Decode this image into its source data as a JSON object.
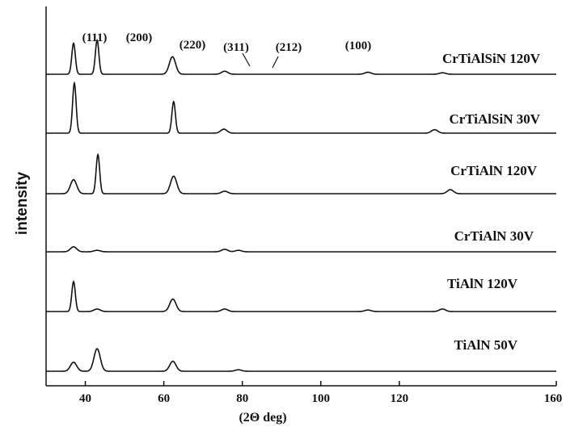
{
  "chart_data": {
    "type": "line",
    "title": "",
    "xlabel": "(2Θ deg)",
    "ylabel": "intensity",
    "xlim": [
      30,
      160
    ],
    "x_ticks": [
      40,
      60,
      80,
      100,
      120,
      160
    ],
    "legend": "none",
    "grid": false,
    "peak_labels": [
      {
        "text": "(111)",
        "x": 37
      },
      {
        "text": "(200)",
        "x": 43
      },
      {
        "text": "(220)",
        "x": 62
      },
      {
        "text": "(311)",
        "x": 75
      },
      {
        "text": "(212)",
        "x": 79
      },
      {
        "text": "(100)",
        "x": 95
      }
    ],
    "series": [
      {
        "name": "CrTiAlSiN  120V",
        "peaks": [
          [
            37,
            0.62
          ],
          [
            43,
            0.68
          ],
          [
            62.2,
            0.35
          ],
          [
            75.5,
            0.06
          ],
          [
            112,
            0.04
          ],
          [
            131,
            0.03
          ]
        ]
      },
      {
        "name": "CrTiAlSiN 30V",
        "peaks": [
          [
            37.2,
            1.0
          ],
          [
            62.5,
            0.63
          ],
          [
            75.3,
            0.08
          ],
          [
            129,
            0.07
          ]
        ]
      },
      {
        "name": "CrTiAlN 120V",
        "peaks": [
          [
            37,
            0.28
          ],
          [
            43.2,
            0.78
          ],
          [
            62.5,
            0.35
          ],
          [
            75.5,
            0.05
          ],
          [
            133,
            0.08
          ]
        ]
      },
      {
        "name": "CrTiAlN 30V",
        "peaks": [
          [
            37,
            0.1
          ],
          [
            43,
            0.03
          ],
          [
            75.5,
            0.05
          ],
          [
            79,
            0.03
          ]
        ]
      },
      {
        "name": "TiAlN 120V",
        "peaks": [
          [
            37,
            0.6
          ],
          [
            43,
            0.05
          ],
          [
            62.3,
            0.25
          ],
          [
            75.5,
            0.05
          ],
          [
            112,
            0.03
          ],
          [
            131,
            0.05
          ]
        ]
      },
      {
        "name": "TiAlN 50V",
        "peaks": [
          [
            37,
            0.18
          ],
          [
            43,
            0.45
          ],
          [
            62.3,
            0.2
          ],
          [
            79,
            0.03
          ]
        ]
      }
    ]
  }
}
